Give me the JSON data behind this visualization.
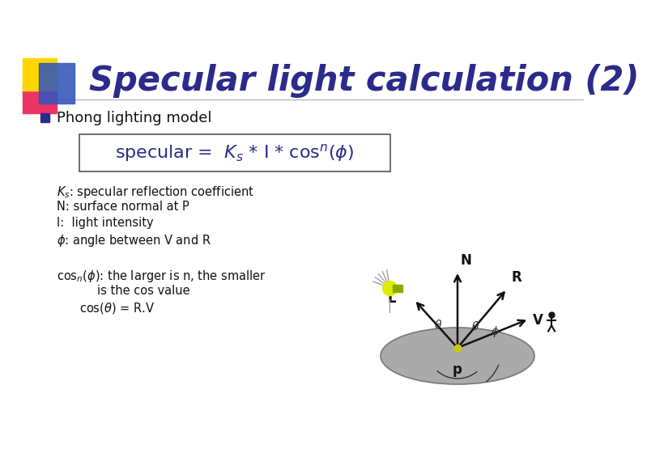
{
  "title": "Specular light calculation (2)",
  "title_color": "#2B2B8C",
  "title_fontsize": 30,
  "bg_color": "#FFFFFF",
  "bullet_text": "Phong lighting model",
  "formula_color": "#2B2B8C",
  "formula_edge": "#555555",
  "text_color": "#111111",
  "deco_yellow": "#FFD700",
  "deco_pink": "#EE3366",
  "deco_blue": "#3355BB",
  "light_color": "#BBDD00",
  "sphere_color": "#AAAAAA",
  "sphere_edge": "#777777"
}
